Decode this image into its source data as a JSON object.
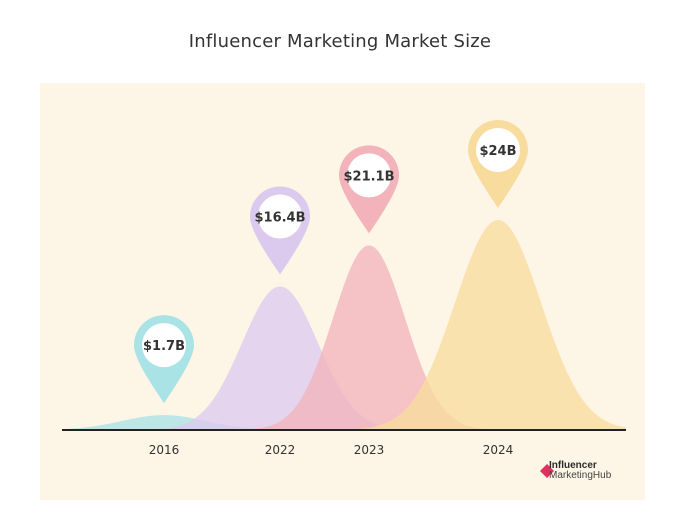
{
  "chart_data": {
    "type": "area",
    "title": "Influencer Marketing Market Size",
    "categories": [
      "2016",
      "2022",
      "2023",
      "2024"
    ],
    "values": [
      1.7,
      16.4,
      21.1,
      24
    ],
    "value_labels": [
      "$1.7B",
      "$16.4B",
      "$21.1B",
      "$24B"
    ],
    "ylim": [
      0,
      24
    ],
    "grid": false,
    "legend": "none"
  },
  "colors": {
    "panel_bg": "#fdf5e6",
    "series": [
      "#a9e3e6",
      "#dccaee",
      "#f2b3bb",
      "#f8dc9e"
    ],
    "axis": "#222222"
  },
  "logo": {
    "line1": "Influencer",
    "line2": "MarketingHub"
  }
}
